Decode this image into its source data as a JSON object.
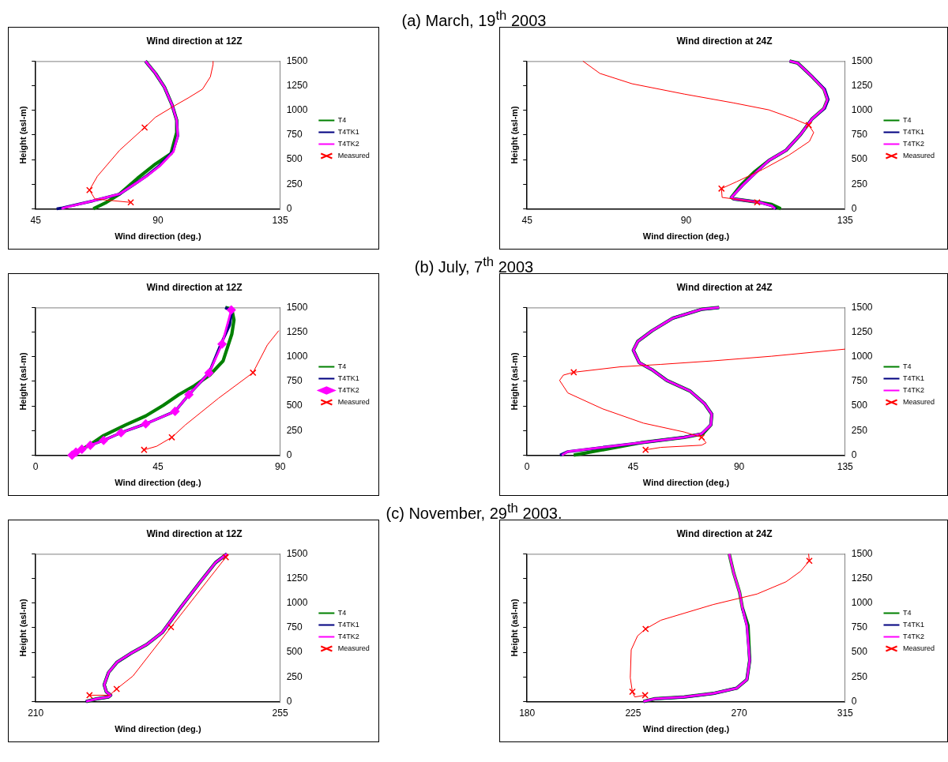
{
  "chart_data": [
    {
      "type": "other",
      "title": "(a) March, 19$^{th}$ 2003"
    },
    {
      "type": "line",
      "title": "Wind direction at 12Z",
      "xlabel": "Wind direction (deg.)",
      "ylabel": "Height (asl-m)",
      "xlim": [
        45,
        135
      ],
      "xticks": [
        45,
        90,
        135
      ],
      "ylim": [
        0,
        1500
      ],
      "yticks": [
        0,
        250,
        500,
        750,
        1000,
        1250,
        1500
      ],
      "legend": "right",
      "series": [
        {
          "name": "T4",
          "type": "line",
          "marker": "none",
          "color": "#008000",
          "x": [
            66.2,
            71,
            75.9,
            82.5,
            89.1,
            94.8,
            96.9,
            96.9,
            95.2,
            92.4,
            89.1,
            85.4
          ],
          "values": [
            0,
            65,
            150,
            310,
            455,
            560,
            775,
            900,
            1055,
            1235,
            1375,
            1500
          ]
        },
        {
          "name": "T4TK1",
          "type": "line",
          "marker": "none",
          "color": "#000080",
          "x": [
            52.7,
            54.9,
            66,
            75.9,
            80.8,
            85.6,
            90.4,
            95.5,
            97.3,
            96.9,
            95.2,
            92.4,
            89.1,
            85.4
          ],
          "values": [
            0,
            10,
            80,
            150,
            240,
            330,
            435,
            580,
            740,
            900,
            1055,
            1235,
            1375,
            1500
          ]
        },
        {
          "name": "T4TK2",
          "type": "line",
          "marker": "none",
          "color": "#ff00ff",
          "x": [
            54.5,
            55.5,
            66,
            75.9,
            80.8,
            85.8,
            90.7,
            95.7,
            97.3,
            96.9,
            95.2,
            92.4,
            89.1,
            85.4
          ],
          "values": [
            0,
            10,
            80,
            150,
            240,
            330,
            435,
            580,
            740,
            900,
            1055,
            1235,
            1375,
            1500
          ]
        },
        {
          "type": "line",
          "marker": "none",
          "color": "#ff0000",
          "x": [
            80,
            66.8,
            64.8,
            67.7,
            75.9,
            85.1,
            89.1,
            95.7,
            101.4,
            106.4,
            109.3,
            110.3,
            110.3
          ],
          "values": [
            65,
            100,
            190,
            330,
            595,
            825,
            930,
            1040,
            1130,
            1215,
            1340,
            1465,
            1500
          ]
        },
        {
          "name": "Measured",
          "type": "scatter",
          "marker": "cross",
          "color": "#ff0000",
          "x": [
            80,
            64.8,
            85.1
          ],
          "values": [
            65,
            190,
            825
          ]
        }
      ]
    },
    {
      "type": "line",
      "title": "Wind direction at 24Z",
      "xlabel": "Wind direction (deg.)",
      "ylabel": "Height (asl-m)",
      "xlim": [
        45,
        135
      ],
      "xticks": [
        45,
        90,
        135
      ],
      "ylim": [
        0,
        1500
      ],
      "yticks": [
        0,
        250,
        500,
        750,
        1000,
        1250,
        1500
      ],
      "legend": "right",
      "series": [
        {
          "name": "T4",
          "type": "line",
          "marker": "none",
          "color": "#008000",
          "x": [
            116.8,
            114.2,
            110.9,
            103.5,
            102.8,
            105.5,
            109.5,
            113.4,
            118.3,
            122.4,
            125.7,
            129,
            130,
            129,
            125.7,
            121.6,
            119.3
          ],
          "values": [
            0,
            45,
            65,
            100,
            115,
            240,
            380,
            490,
            595,
            755,
            915,
            1020,
            1110,
            1215,
            1340,
            1480,
            1500
          ]
        },
        {
          "name": "T4TK1",
          "type": "line",
          "marker": "none",
          "color": "#000080",
          "x": [
            115.5,
            114.2,
            110.9,
            103.5,
            102.8,
            106,
            110.1,
            113.4,
            118.3,
            122.4,
            125.7,
            129.2,
            130.2,
            129.2,
            125.7,
            121.6,
            119.3
          ],
          "values": [
            0,
            30,
            65,
            100,
            115,
            240,
            380,
            490,
            595,
            755,
            915,
            1020,
            1110,
            1215,
            1340,
            1480,
            1500
          ]
        },
        {
          "name": "T4TK2",
          "type": "line",
          "marker": "none",
          "color": "#ff00ff",
          "x": [
            115.2,
            114.2,
            110.9,
            103.5,
            102.8,
            106,
            110.1,
            113.4,
            118.3,
            122.4,
            125.7,
            129,
            130,
            129,
            125.7,
            121.6,
            119.3
          ],
          "values": [
            0,
            30,
            65,
            100,
            115,
            240,
            380,
            490,
            595,
            755,
            915,
            1020,
            1110,
            1215,
            1340,
            1480,
            1500
          ]
        },
        {
          "type": "line",
          "marker": "none",
          "color": "#ff0000",
          "x": [
            60.8,
            65.6,
            74.7,
            89.5,
            103.5,
            113.4,
            120.4,
            124.7,
            126.1,
            124.9,
            119.1,
            111.7,
            104.3,
            100,
            100.2,
            103.5,
            110.1
          ],
          "values": [
            1500,
            1375,
            1270,
            1165,
            1075,
            1005,
            915,
            850,
            775,
            685,
            545,
            400,
            275,
            205,
            115,
            100,
            65
          ]
        },
        {
          "name": "Measured",
          "type": "scatter",
          "marker": "cross",
          "color": "#ff0000",
          "x": [
            124.7,
            100,
            110.1
          ],
          "values": [
            850,
            205,
            65
          ]
        }
      ]
    },
    {
      "type": "other",
      "title": "(b) July, 7$^{th}$ 2003"
    },
    {
      "type": "line",
      "title": "Wind direction at 12Z",
      "xlabel": "Wind direction (deg.)",
      "ylabel": "Height (asl-m)",
      "xlim": [
        0,
        90
      ],
      "xticks": [
        0,
        45,
        90
      ],
      "ylim": [
        0,
        1500
      ],
      "yticks": [
        0,
        250,
        500,
        750,
        1000,
        1250,
        1500
      ],
      "legend": "right",
      "series": [
        {
          "name": "T4",
          "type": "line",
          "marker": "none",
          "color": "#008000",
          "x": [
            13.4,
            20.1,
            25,
            33.1,
            40.5,
            47,
            52.7,
            58.4,
            64.1,
            69,
            72.2,
            73,
            72.2,
            69.8
          ],
          "values": [
            0,
            108,
            199,
            307,
            398,
            506,
            615,
            705,
            813,
            958,
            1229,
            1373,
            1482,
            1500
          ]
        },
        {
          "name": "T4TK1",
          "type": "line",
          "marker": "none",
          "color": "#000080",
          "x": [
            20.1,
            25,
            31.4,
            40.5,
            51.3,
            56.4,
            63.8,
            68.2,
            71.4,
            72.2,
            69.8
          ],
          "values": [
            100,
            150,
            228,
            318,
            445,
            615,
            835,
            1128,
            1320,
            1460,
            1500
          ]
        },
        {
          "name": "T4TK2",
          "type": "line",
          "marker": "diamond",
          "color": "#ff00ff",
          "x": [
            13.4,
            14.8,
            17,
            20.1,
            25,
            31.4,
            40.5,
            51.3,
            56.4,
            63.8,
            68.6,
            72
          ],
          "values": [
            0,
            30,
            60,
            100,
            150,
            228,
            318,
            445,
            615,
            835,
            1128,
            1475
          ]
        },
        {
          "type": "line",
          "marker": "none",
          "color": "#ff0000",
          "x": [
            39.9,
            44.5,
            50.1,
            55.1,
            67.3,
            80,
            85.3,
            89.5
          ],
          "values": [
            54,
            90,
            181,
            307,
            578,
            838,
            1120,
            1265
          ]
        },
        {
          "name": "Measured",
          "type": "scatter",
          "marker": "cross",
          "color": "#ff0000",
          "x": [
            39.9,
            50.1,
            80
          ],
          "values": [
            54,
            181,
            838
          ]
        }
      ]
    },
    {
      "type": "line",
      "title": "Wind direction at 24Z",
      "xlabel": "Wind direction (deg.)",
      "ylabel": "Height (asl-m)",
      "xlim": [
        0,
        135
      ],
      "xticks": [
        0,
        45,
        90,
        135
      ],
      "ylim": [
        0,
        1500
      ],
      "yticks": [
        0,
        250,
        500,
        750,
        1000,
        1250,
        1500
      ],
      "legend": "right",
      "series": [
        {
          "name": "T4",
          "type": "line",
          "marker": "none",
          "color": "#008000",
          "x": [
            19.8,
            29.6,
            48.2,
            66.7,
            74.6,
            78,
            78.4,
            75.3,
            69.2,
            59.3,
            53.1,
            47.6,
            45.1,
            47,
            53.1,
            61.8,
            74.1,
            81.5
          ],
          "values": [
            0,
            43,
            126,
            181,
            217,
            307,
            416,
            524,
            651,
            759,
            867,
            940,
            1066,
            1156,
            1265,
            1391,
            1482,
            1500
          ]
        },
        {
          "name": "T4TK1",
          "type": "line",
          "marker": "none",
          "color": "#000080",
          "x": [
            14,
            17.3,
            29.6,
            48.2,
            66.7,
            74.1,
            78,
            78.4,
            75.3,
            69.2,
            59.3,
            53.1,
            47.6,
            45.1,
            47,
            53.1,
            61.8,
            74.1,
            81.5
          ],
          "values": [
            0,
            36,
            72,
            126,
            181,
            217,
            307,
            416,
            524,
            651,
            759,
            867,
            940,
            1066,
            1156,
            1265,
            1391,
            1482,
            1500
          ]
        },
        {
          "name": "T4TK2",
          "type": "line",
          "marker": "none",
          "color": "#ff00ff",
          "x": [
            14.8,
            17.3,
            29.6,
            48.2,
            66.7,
            74.1,
            78,
            78.4,
            75.3,
            69.2,
            59.3,
            53.1,
            47.6,
            45.1,
            47,
            53.1,
            61.8,
            74.1,
            81.5
          ],
          "values": [
            0,
            36,
            72,
            126,
            181,
            217,
            307,
            416,
            524,
            651,
            759,
            867,
            940,
            1066,
            1156,
            1265,
            1391,
            1482,
            1500
          ]
        },
        {
          "type": "line",
          "marker": "none",
          "color": "#ff0000",
          "x": [
            135,
            103.8,
            79,
            56.8,
            39.5,
            19.8,
            15.4,
            13.8,
            17.3,
            32.1,
            49.4,
            66.7,
            74.1,
            76,
            74.1,
            56.8,
            50.3
          ],
          "values": [
            1077,
            1005,
            958,
            922,
            897,
            842,
            813,
            759,
            632,
            470,
            325,
            235,
            181,
            126,
            101,
            79,
            54
          ]
        },
        {
          "name": "Measured",
          "type": "scatter",
          "marker": "cross",
          "color": "#ff0000",
          "x": [
            19.8,
            74.1,
            50.3
          ],
          "values": [
            842,
            181,
            54
          ]
        }
      ]
    },
    {
      "type": "other",
      "title": "(c) November, 29$^{th}$ 2003."
    },
    {
      "type": "line",
      "title": "Wind direction at 12Z",
      "xlabel": "Wind direction (deg.)",
      "ylabel": "Height (asl-m)",
      "xlim": [
        210,
        255
      ],
      "xticks": [
        210,
        255
      ],
      "ylim": [
        0,
        1500
      ],
      "yticks": [
        0,
        250,
        500,
        750,
        1000,
        1250,
        1500
      ],
      "legend": "right",
      "series": [
        {
          "name": "T4",
          "type": "line",
          "marker": "none",
          "color": "#008000",
          "x": [
            219.3,
            221.3,
            223.4,
            223.8,
            223,
            222.6,
            223.4,
            225,
            227.5,
            230.4,
            233.3,
            236.6,
            240.3,
            243.1,
            245.2
          ],
          "values": [
            0,
            28,
            46,
            64,
            99,
            170,
            294,
            401,
            489,
            578,
            702,
            950,
            1216,
            1411,
            1500
          ]
        },
        {
          "name": "T4TK1",
          "type": "line",
          "marker": "none",
          "color": "#000080",
          "x": [
            219.2,
            221.3,
            223.4,
            223.8,
            223,
            222.6,
            223.4,
            225,
            227.5,
            230.4,
            233.3,
            236.6,
            240.3,
            243.1,
            245.2
          ],
          "values": [
            0,
            28,
            46,
            64,
            99,
            170,
            294,
            401,
            489,
            578,
            702,
            950,
            1216,
            1411,
            1500
          ]
        },
        {
          "name": "T4TK2",
          "type": "line",
          "marker": "none",
          "color": "#ff00ff",
          "x": [
            219.3,
            221.3,
            223.4,
            223.8,
            223,
            222.6,
            223.4,
            225,
            227.5,
            230.4,
            233.3,
            236.6,
            240.3,
            243.1,
            245.2
          ],
          "values": [
            0,
            28,
            46,
            64,
            99,
            170,
            294,
            401,
            489,
            578,
            702,
            950,
            1216,
            1411,
            1500
          ]
        },
        {
          "type": "line",
          "marker": "none",
          "color": "#ff0000",
          "x": [
            219.9,
            223.6,
            224.9,
            227.9,
            234.9,
            245,
            245.3
          ],
          "values": [
            64,
            64,
            128,
            259,
            755,
            1465,
            1500
          ]
        },
        {
          "name": "Measured",
          "type": "scatter",
          "marker": "cross",
          "color": "#ff0000",
          "x": [
            219.9,
            224.9,
            234.9,
            245
          ],
          "values": [
            64,
            128,
            755,
            1465
          ]
        }
      ]
    },
    {
      "type": "line",
      "title": "Wind direction at 24Z",
      "xlabel": "Wind direction (deg.)",
      "ylabel": "Height (asl-m)",
      "xlim": [
        180,
        315
      ],
      "xticks": [
        180,
        225,
        270,
        315
      ],
      "ylim": [
        0,
        1500
      ],
      "yticks": [
        0,
        250,
        500,
        750,
        1000,
        1250,
        1500
      ],
      "legend": "right",
      "series": [
        {
          "name": "T4",
          "type": "line",
          "marker": "none",
          "color": "#008000",
          "x": [
            229.4,
            234.3,
            246.7,
            259,
            268.9,
            273.3,
            274.5,
            273.8,
            271.4,
            270.2,
            267.7,
            265.8
          ],
          "values": [
            0,
            28,
            46,
            82,
            135,
            223,
            418,
            773,
            950,
            1110,
            1305,
            1500
          ]
        },
        {
          "name": "T4TK1",
          "type": "line",
          "marker": "none",
          "color": "#000080",
          "x": [
            229.4,
            234.3,
            246.7,
            259,
            268.9,
            273.3,
            274.5,
            273.3,
            271.4
          ],
          "values": [
            0,
            28,
            46,
            82,
            135,
            223,
            418,
            773,
            950
          ]
        },
        {
          "name": "T4TK2",
          "type": "line",
          "marker": "none",
          "color": "#ff00ff",
          "x": [
            229.4,
            234.3,
            246.7,
            259,
            268.9,
            273.3,
            274.5,
            273.3,
            271.4,
            270.2,
            267.7,
            265.8
          ],
          "values": [
            0,
            28,
            46,
            82,
            135,
            223,
            418,
            773,
            950,
            1110,
            1305,
            1500
          ]
        },
        {
          "type": "line",
          "marker": "none",
          "color": "#ff0000",
          "x": [
            299.5,
            299.8,
            296.1,
            289.9,
            277.6,
            259,
            246.7,
            236.8,
            230.3,
            226.9,
            224.2,
            223.8,
            224.7,
            225.7,
            230.1
          ],
          "values": [
            1500,
            1429,
            1323,
            1216,
            1092,
            985,
            897,
            826,
            737,
            667,
            525,
            241,
            99,
            46,
            64
          ]
        },
        {
          "name": "Measured",
          "type": "scatter",
          "marker": "cross",
          "color": "#ff0000",
          "x": [
            230.3,
            224.7,
            230.1,
            299.8
          ],
          "values": [
            737,
            99,
            64,
            1429
          ]
        }
      ]
    }
  ]
}
